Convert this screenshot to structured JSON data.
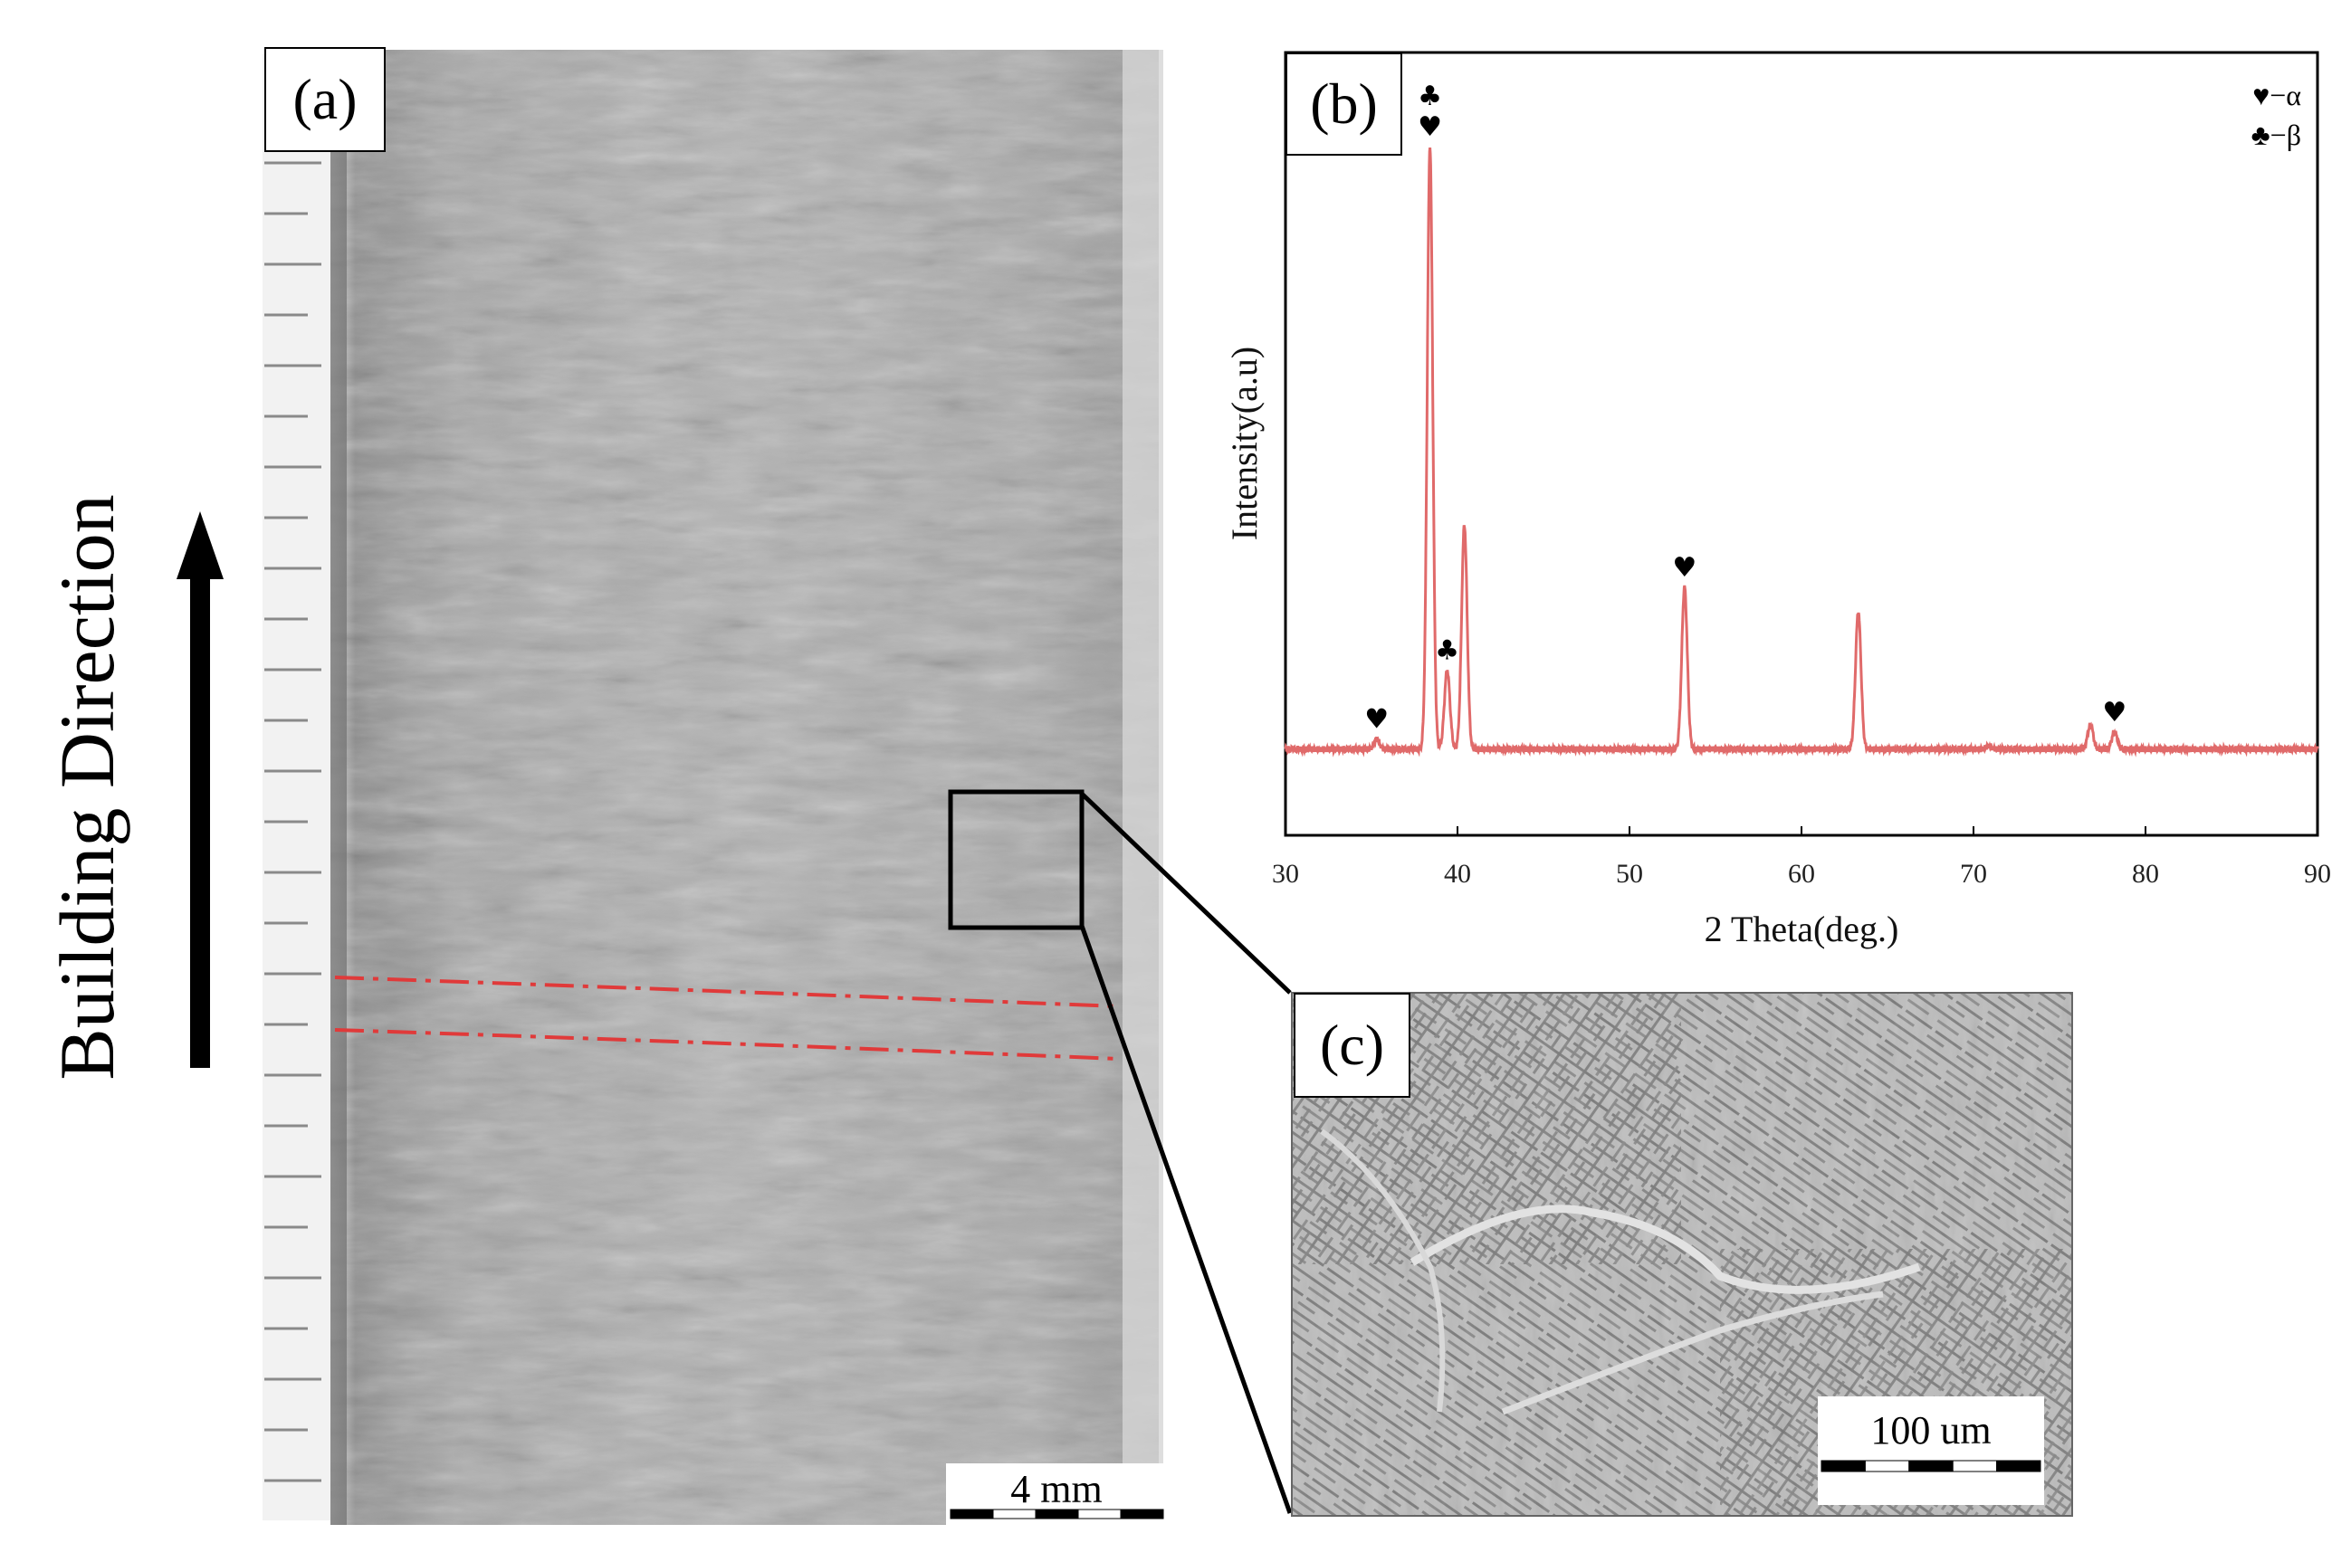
{
  "figure": {
    "building_direction_label": "Building Direction",
    "panel_a": {
      "label": "(a)",
      "scale_bar": "4 mm"
    },
    "panel_b": {
      "label": "(b)"
    },
    "panel_c": {
      "label": "(c)",
      "scale_bar": "100 um"
    },
    "colors": {
      "xrd_line": "#e06a6a",
      "dashed_lines": "#e03a3a",
      "frame": "#000000"
    }
  },
  "chart_data": {
    "type": "line",
    "title": "",
    "xlabel": "2 Theta(deg.)",
    "ylabel": "Intensity(a.u)",
    "xlim": [
      30,
      90
    ],
    "x_ticks": [
      30,
      40,
      50,
      60,
      70,
      80,
      90
    ],
    "y_ticks": [],
    "legend": {
      "placement": "top-right",
      "entries": [
        {
          "symbol": "♥",
          "label": "−α"
        },
        {
          "symbol": "♣",
          "label": "−β"
        }
      ]
    },
    "series": [
      {
        "baseline": 0.125,
        "peaks": [
          {
            "x": 35.3,
            "y": 0.14
          },
          {
            "x": 38.4,
            "y": 1.0
          },
          {
            "x": 39.4,
            "y": 0.24
          },
          {
            "x": 40.4,
            "y": 0.45
          },
          {
            "x": 53.2,
            "y": 0.36
          },
          {
            "x": 63.3,
            "y": 0.325
          },
          {
            "x": 70.9,
            "y": 0.13
          },
          {
            "x": 76.8,
            "y": 0.16
          },
          {
            "x": 78.2,
            "y": 0.15
          }
        ]
      }
    ],
    "annotations": [
      {
        "x": 35.3,
        "symbols": "♥"
      },
      {
        "x": 38.4,
        "symbols": "♣♥"
      },
      {
        "x": 39.4,
        "symbols": "♣"
      },
      {
        "x": 53.2,
        "symbols": "♥"
      },
      {
        "x": 78.2,
        "symbols": "♥"
      }
    ],
    "grid": false
  }
}
